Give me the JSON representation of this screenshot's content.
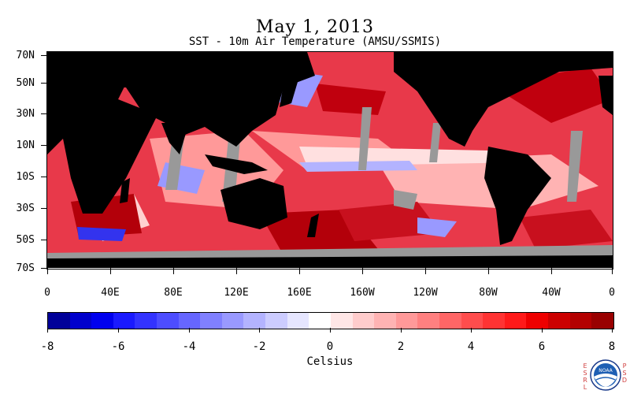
{
  "title": "May 1, 2013",
  "subtitle": "SST - 10m Air Temperature (AMSU/SSMIS)",
  "lat_labels": [
    "70N",
    "50N",
    "30N",
    "10N",
    "10S",
    "30S",
    "50S",
    "70S"
  ],
  "lon_labels": [
    "0",
    "40E",
    "80E",
    "120E",
    "160E",
    "160W",
    "120W",
    "80W",
    "40W",
    "0"
  ],
  "colorbar": {
    "title": "Celsius",
    "labels": [
      "-8",
      "-6",
      "-4",
      "-2",
      "0",
      "2",
      "4",
      "6",
      "8"
    ],
    "colors": [
      "#000099",
      "#0000cc",
      "#0000ee",
      "#1a1aff",
      "#3333ff",
      "#4d4dff",
      "#6666ff",
      "#8080ff",
      "#9999ff",
      "#b3b3ff",
      "#ccccff",
      "#e6e6ff",
      "#ffffff",
      "#ffe6e6",
      "#ffcccc",
      "#ffb3b3",
      "#ff9999",
      "#ff8080",
      "#ff6666",
      "#ff4d4d",
      "#ff3333",
      "#ff1a1a",
      "#ee0000",
      "#cc0000",
      "#b30000",
      "#990000"
    ]
  },
  "map_colors": {
    "land": "#000000",
    "missing": "#999999",
    "warm": "#e8394a",
    "hot": "#b3000a",
    "mild": "#ff9999",
    "neutral": "#ffe0e0",
    "cool": "#9999ff",
    "cold": "#3333ee"
  },
  "logo": {
    "left_text": "ESRL",
    "right_text": "PSD",
    "center_text": "NOAA"
  }
}
